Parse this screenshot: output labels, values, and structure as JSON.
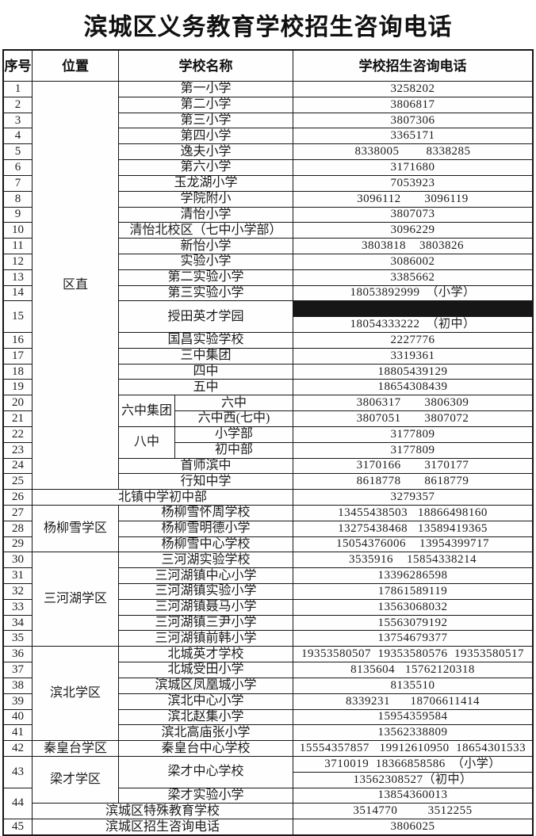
{
  "title": "滨城区义务教育学校招生咨询电话",
  "grid": {
    "header_cells": [
      {
        "c": 1,
        "cs": 1,
        "t": "序号"
      },
      {
        "c": 2,
        "cs": 1,
        "t": "位置"
      },
      {
        "c": 3,
        "cs": 2,
        "t": "学校名称"
      },
      {
        "c": 5,
        "cs": 1,
        "t": "学校招生咨询电话"
      }
    ],
    "cells": [
      {
        "r": 1,
        "c": 1,
        "t": "1"
      },
      {
        "r": 2,
        "c": 1,
        "t": "2"
      },
      {
        "r": 3,
        "c": 1,
        "t": "3"
      },
      {
        "r": 4,
        "c": 1,
        "t": "4"
      },
      {
        "r": 5,
        "c": 1,
        "t": "5"
      },
      {
        "r": 6,
        "c": 1,
        "t": "6"
      },
      {
        "r": 7,
        "c": 1,
        "t": "7"
      },
      {
        "r": 8,
        "c": 1,
        "t": "8"
      },
      {
        "r": 9,
        "c": 1,
        "t": "9"
      },
      {
        "r": 10,
        "c": 1,
        "t": "10"
      },
      {
        "r": 11,
        "c": 1,
        "t": "11"
      },
      {
        "r": 12,
        "c": 1,
        "t": "12"
      },
      {
        "r": 13,
        "c": 1,
        "t": "13"
      },
      {
        "r": 14,
        "c": 1,
        "t": "14"
      },
      {
        "r": 15,
        "rs": 2,
        "c": 1,
        "t": "15"
      },
      {
        "r": 17,
        "c": 1,
        "t": "16"
      },
      {
        "r": 18,
        "c": 1,
        "t": "17"
      },
      {
        "r": 19,
        "c": 1,
        "t": "18"
      },
      {
        "r": 20,
        "c": 1,
        "t": "19"
      },
      {
        "r": 21,
        "c": 1,
        "t": "20"
      },
      {
        "r": 22,
        "c": 1,
        "t": "21"
      },
      {
        "r": 23,
        "c": 1,
        "t": "22"
      },
      {
        "r": 24,
        "c": 1,
        "t": "23"
      },
      {
        "r": 25,
        "c": 1,
        "t": "24"
      },
      {
        "r": 26,
        "c": 1,
        "t": "25"
      },
      {
        "r": 27,
        "c": 1,
        "t": "26"
      },
      {
        "r": 28,
        "c": 1,
        "t": "27"
      },
      {
        "r": 29,
        "c": 1,
        "t": "28"
      },
      {
        "r": 30,
        "c": 1,
        "t": "29"
      },
      {
        "r": 31,
        "c": 1,
        "t": "30"
      },
      {
        "r": 32,
        "c": 1,
        "t": "31"
      },
      {
        "r": 33,
        "c": 1,
        "t": "32"
      },
      {
        "r": 34,
        "c": 1,
        "t": "33"
      },
      {
        "r": 35,
        "c": 1,
        "t": "34"
      },
      {
        "r": 36,
        "c": 1,
        "t": "35"
      },
      {
        "r": 37,
        "c": 1,
        "t": "36"
      },
      {
        "r": 38,
        "c": 1,
        "t": "37"
      },
      {
        "r": 39,
        "c": 1,
        "t": "38"
      },
      {
        "r": 40,
        "c": 1,
        "t": "39"
      },
      {
        "r": 41,
        "c": 1,
        "t": "40"
      },
      {
        "r": 42,
        "c": 1,
        "t": "41"
      },
      {
        "r": 43,
        "c": 1,
        "t": "42"
      },
      {
        "r": 44,
        "rs": 2,
        "c": 1,
        "t": "43"
      },
      {
        "r": 46,
        "rs": 2,
        "c": 1,
        "t": "44"
      },
      {
        "r": 48,
        "c": 1,
        "t": "45"
      },
      {
        "r": 1,
        "rs": 26,
        "c": 2,
        "t": "区直"
      },
      {
        "r": 28,
        "rs": 3,
        "c": 2,
        "t": "杨柳雪学区"
      },
      {
        "r": 31,
        "rs": 6,
        "c": 2,
        "t": "三河湖学区"
      },
      {
        "r": 37,
        "rs": 6,
        "c": 2,
        "t": "滨北学区"
      },
      {
        "r": 43,
        "c": 2,
        "t": "秦皇台学区"
      },
      {
        "r": 44,
        "rs": 3,
        "c": 2,
        "t": "梁才学区"
      },
      {
        "r": 1,
        "c": 3,
        "cs": 2,
        "t": "第一小学"
      },
      {
        "r": 2,
        "c": 3,
        "cs": 2,
        "t": "第二小学"
      },
      {
        "r": 3,
        "c": 3,
        "cs": 2,
        "t": "第三小学"
      },
      {
        "r": 4,
        "c": 3,
        "cs": 2,
        "t": "第四小学"
      },
      {
        "r": 5,
        "c": 3,
        "cs": 2,
        "t": "逸夫小学"
      },
      {
        "r": 6,
        "c": 3,
        "cs": 2,
        "t": "第六小学"
      },
      {
        "r": 7,
        "c": 3,
        "cs": 2,
        "t": "玉龙湖小学"
      },
      {
        "r": 8,
        "c": 3,
        "cs": 2,
        "t": "学院附小"
      },
      {
        "r": 9,
        "c": 3,
        "cs": 2,
        "t": "清怡小学"
      },
      {
        "r": 10,
        "c": 3,
        "cs": 2,
        "t": "清怡北校区（七中小学部）"
      },
      {
        "r": 11,
        "c": 3,
        "cs": 2,
        "t": "新怡小学"
      },
      {
        "r": 12,
        "c": 3,
        "cs": 2,
        "t": "实验小学"
      },
      {
        "r": 13,
        "c": 3,
        "cs": 2,
        "t": "第二实验小学"
      },
      {
        "r": 14,
        "c": 3,
        "cs": 2,
        "t": "第三实验小学"
      },
      {
        "r": 15,
        "rs": 2,
        "c": 3,
        "cs": 2,
        "t": "授田英才学园"
      },
      {
        "r": 17,
        "c": 3,
        "cs": 2,
        "t": "国昌实验学校"
      },
      {
        "r": 18,
        "c": 3,
        "cs": 2,
        "t": "三中集团"
      },
      {
        "r": 19,
        "c": 3,
        "cs": 2,
        "t": "四中"
      },
      {
        "r": 20,
        "c": 3,
        "cs": 2,
        "t": "五中"
      },
      {
        "r": 21,
        "rs": 2,
        "c": 3,
        "t": "六中集团"
      },
      {
        "r": 21,
        "c": 4,
        "t": "六中"
      },
      {
        "r": 22,
        "c": 4,
        "t": "六中西(七中)"
      },
      {
        "r": 23,
        "rs": 2,
        "c": 3,
        "t": "八中"
      },
      {
        "r": 23,
        "c": 4,
        "t": "小学部"
      },
      {
        "r": 24,
        "c": 4,
        "t": "初中部"
      },
      {
        "r": 25,
        "c": 3,
        "cs": 2,
        "t": "首师滨中"
      },
      {
        "r": 26,
        "c": 3,
        "cs": 2,
        "t": "行知中学"
      },
      {
        "r": 27,
        "c": 2,
        "cs": 3,
        "t": "北镇中学初中部"
      },
      {
        "r": 28,
        "c": 3,
        "cs": 2,
        "t": "杨柳雪怀周学校"
      },
      {
        "r": 29,
        "c": 3,
        "cs": 2,
        "t": "杨柳雪明德小学"
      },
      {
        "r": 30,
        "c": 3,
        "cs": 2,
        "t": "杨柳雪中心学校"
      },
      {
        "r": 31,
        "c": 3,
        "cs": 2,
        "t": "三河湖实验学校"
      },
      {
        "r": 32,
        "c": 3,
        "cs": 2,
        "t": "三河湖镇中心小学"
      },
      {
        "r": 33,
        "c": 3,
        "cs": 2,
        "t": "三河湖镇实验小学"
      },
      {
        "r": 34,
        "c": 3,
        "cs": 2,
        "t": "三河湖镇聂马小学"
      },
      {
        "r": 35,
        "c": 3,
        "cs": 2,
        "t": "三河湖镇三尹小学"
      },
      {
        "r": 36,
        "c": 3,
        "cs": 2,
        "t": "三河湖镇前韩小学"
      },
      {
        "r": 37,
        "c": 3,
        "cs": 2,
        "t": "北城英才学校"
      },
      {
        "r": 38,
        "c": 3,
        "cs": 2,
        "t": "北城受田小学"
      },
      {
        "r": 39,
        "c": 3,
        "cs": 2,
        "t": "滨城区凤凰城小学"
      },
      {
        "r": 40,
        "c": 3,
        "cs": 2,
        "t": "滨北中心小学"
      },
      {
        "r": 41,
        "c": 3,
        "cs": 2,
        "t": "滨北赵集小学"
      },
      {
        "r": 42,
        "c": 3,
        "cs": 2,
        "t": "滨北高庙张小学"
      },
      {
        "r": 43,
        "c": 3,
        "cs": 2,
        "t": "秦皇台中心学校"
      },
      {
        "r": 44,
        "rs": 2,
        "c": 3,
        "cs": 2,
        "t": "梁才中心学校"
      },
      {
        "r": 46,
        "c": 3,
        "cs": 2,
        "t": "梁才实验小学"
      },
      {
        "r": 47,
        "c": 2,
        "cs": 3,
        "t": "滨城区特殊教育学校"
      },
      {
        "r": 48,
        "c": 2,
        "cs": 3,
        "t": "滨城区招生咨询电话"
      },
      {
        "r": 1,
        "c": 5,
        "t": "3258202"
      },
      {
        "r": 2,
        "c": 5,
        "t": "3806817"
      },
      {
        "r": 3,
        "c": 5,
        "t": "3807306"
      },
      {
        "r": 4,
        "c": 5,
        "t": "3365171"
      },
      {
        "r": 5,
        "c": 5,
        "t": "8338005        8338285"
      },
      {
        "r": 6,
        "c": 5,
        "t": "3171680"
      },
      {
        "r": 7,
        "c": 5,
        "t": "7053923"
      },
      {
        "r": 8,
        "c": 5,
        "t": "3096112       3096119"
      },
      {
        "r": 9,
        "c": 5,
        "t": "3807073"
      },
      {
        "r": 10,
        "c": 5,
        "t": "3096229"
      },
      {
        "r": 11,
        "c": 5,
        "t": "3803818    3803826"
      },
      {
        "r": 12,
        "c": 5,
        "t": "3086002"
      },
      {
        "r": 13,
        "c": 5,
        "t": "3385662"
      },
      {
        "r": 14,
        "c": 5,
        "t": "18053892999　（小学）"
      },
      {
        "r": 16,
        "c": 5,
        "t": "18054333222　（初中）"
      },
      {
        "r": 17,
        "c": 5,
        "t": "2227776"
      },
      {
        "r": 18,
        "c": 5,
        "t": "3319361"
      },
      {
        "r": 19,
        "c": 5,
        "t": "18805439129"
      },
      {
        "r": 20,
        "c": 5,
        "t": "18654308439"
      },
      {
        "r": 21,
        "c": 5,
        "t": "3806317       3806309"
      },
      {
        "r": 22,
        "c": 5,
        "t": "3807051       3807072"
      },
      {
        "r": 23,
        "c": 5,
        "t": "3177809"
      },
      {
        "r": 24,
        "c": 5,
        "t": "3177809"
      },
      {
        "r": 25,
        "c": 5,
        "t": "3170166       3170177"
      },
      {
        "r": 26,
        "c": 5,
        "t": "8618778       8618779"
      },
      {
        "r": 27,
        "c": 5,
        "t": "3279357"
      },
      {
        "r": 28,
        "c": 5,
        "t": "13455438503   18866498160"
      },
      {
        "r": 29,
        "c": 5,
        "t": "13275438468   13589419365"
      },
      {
        "r": 30,
        "c": 5,
        "t": "15054376006    13954399717"
      },
      {
        "r": 31,
        "c": 5,
        "t": "3535916    15854338214"
      },
      {
        "r": 32,
        "c": 5,
        "t": "13396286598"
      },
      {
        "r": 33,
        "c": 5,
        "t": "17861589119"
      },
      {
        "r": 34,
        "c": 5,
        "t": "13563068032"
      },
      {
        "r": 35,
        "c": 5,
        "t": "15563079192"
      },
      {
        "r": 36,
        "c": 5,
        "t": "13754679377"
      },
      {
        "r": 37,
        "c": 5,
        "t": "19353580507  19353580576  19353580517"
      },
      {
        "r": 38,
        "c": 5,
        "t": "8135604   15762120318"
      },
      {
        "r": 39,
        "c": 5,
        "t": "8135510"
      },
      {
        "r": 40,
        "c": 5,
        "t": "8339231      18706611414"
      },
      {
        "r": 41,
        "c": 5,
        "t": "15954359584"
      },
      {
        "r": 42,
        "c": 5,
        "t": "13562338809"
      },
      {
        "r": 43,
        "c": 5,
        "t": "15554357857   19912610950  18654301533"
      },
      {
        "r": 44,
        "c": 5,
        "t": "3710019  18366858586　（小学）"
      },
      {
        "r": 45,
        "c": 5,
        "t": "13562308527（初中）"
      },
      {
        "r": 46,
        "c": 5,
        "t": "13854360013"
      },
      {
        "r": 47,
        "c": 5,
        "t": "3514770         3512255"
      },
      {
        "r": 48,
        "c": 5,
        "t": "3806025"
      }
    ]
  }
}
